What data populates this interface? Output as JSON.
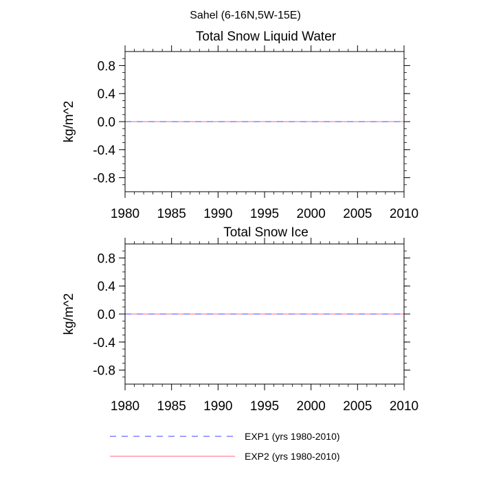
{
  "figure_title": "Sahel (6-16N,5W-15E)",
  "chart_data": [
    {
      "type": "line",
      "title": "Total Snow Liquid Water",
      "xlabel": "",
      "ylabel": "kg/m^2",
      "xlim": [
        1980,
        2010
      ],
      "ylim": [
        -1.0,
        1.0
      ],
      "xticks": [
        1980,
        1985,
        1990,
        1995,
        2000,
        2005,
        2010
      ],
      "yticks": [
        -0.8,
        -0.4,
        0.0,
        0.4,
        0.8
      ],
      "xtick_labels": [
        "1980",
        "1985",
        "1990",
        "1995",
        "2000",
        "2005",
        "2010"
      ],
      "ytick_labels": [
        "-0.8",
        "-0.4",
        "0.0",
        "0.4",
        "0.8"
      ],
      "series": [
        {
          "name": "EXP1 (yrs 1980-2010)",
          "color": "#4040ff",
          "style": "dashed",
          "x": [
            1980,
            2010
          ],
          "y": [
            0.0,
            0.0
          ]
        },
        {
          "name": "EXP2 (yrs 1980-2010)",
          "color": "#ff6080",
          "style": "solid",
          "x": [
            1980,
            2010
          ],
          "y": [
            0.0,
            0.0
          ]
        }
      ]
    },
    {
      "type": "line",
      "title": "Total Snow Ice",
      "xlabel": "",
      "ylabel": "kg/m^2",
      "xlim": [
        1980,
        2010
      ],
      "ylim": [
        -1.0,
        1.0
      ],
      "xticks": [
        1980,
        1985,
        1990,
        1995,
        2000,
        2005,
        2010
      ],
      "yticks": [
        -0.8,
        -0.4,
        0.0,
        0.4,
        0.8
      ],
      "xtick_labels": [
        "1980",
        "1985",
        "1990",
        "1995",
        "2000",
        "2005",
        "2010"
      ],
      "ytick_labels": [
        "-0.8",
        "-0.4",
        "0.0",
        "0.4",
        "0.8"
      ],
      "series": [
        {
          "name": "EXP1 (yrs 1980-2010)",
          "color": "#4040ff",
          "style": "dashed",
          "x": [
            1980,
            2010
          ],
          "y": [
            0.0,
            0.0
          ]
        },
        {
          "name": "EXP2 (yrs 1980-2010)",
          "color": "#ff6080",
          "style": "solid",
          "x": [
            1980,
            2010
          ],
          "y": [
            0.0,
            0.0
          ]
        }
      ]
    }
  ],
  "legend": {
    "placement": "bottom",
    "items": [
      {
        "label": "EXP1 (yrs 1980-2010)",
        "color": "#4040ff",
        "style": "dashed"
      },
      {
        "label": "EXP2 (yrs 1980-2010)",
        "color": "#ff6080",
        "style": "solid"
      }
    ]
  }
}
